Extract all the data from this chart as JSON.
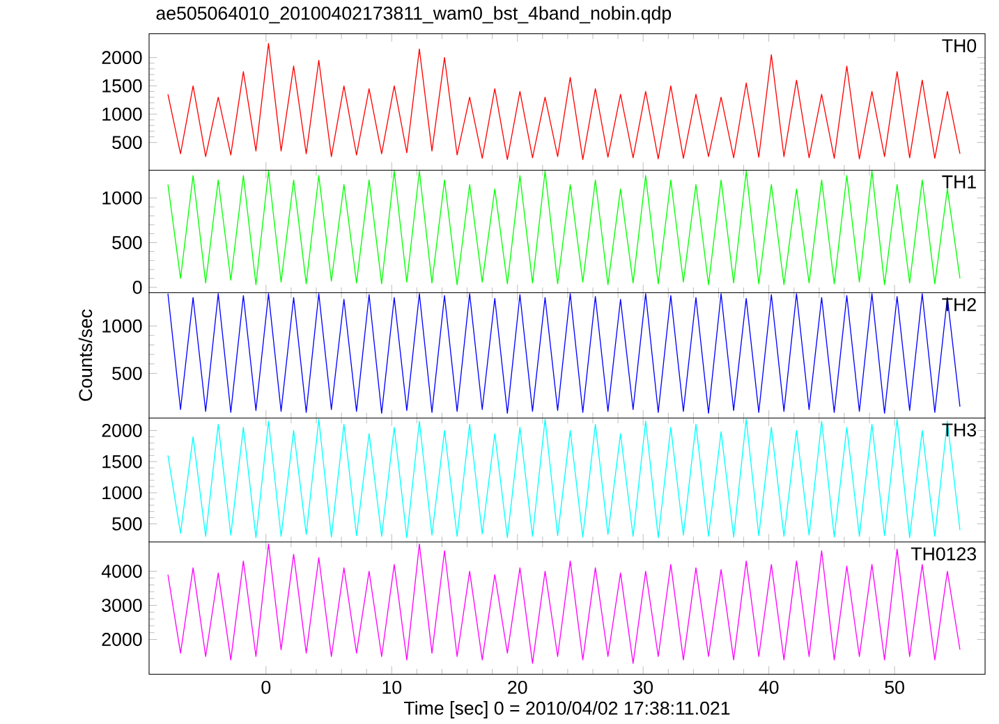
{
  "chart_data": [
    {
      "type": "line",
      "title": "ae505064010_20100402173811_wam0_bst_4band_nobin.qdp",
      "x": [
        -7.8,
        -6.8,
        -5.8,
        -4.8,
        -3.8,
        -2.8,
        -1.8,
        -0.8,
        0.2,
        1.2,
        2.2,
        3.2,
        4.2,
        5.2,
        6.2,
        7.2,
        8.2,
        9.2,
        10.2,
        11.2,
        12.2,
        13.2,
        14.2,
        15.2,
        16.2,
        17.2,
        18.2,
        19.2,
        20.2,
        21.2,
        22.2,
        23.2,
        24.2,
        25.2,
        26.2,
        27.2,
        28.2,
        29.2,
        30.2,
        31.2,
        32.2,
        33.2,
        34.2,
        35.2,
        36.2,
        37.2,
        38.2,
        39.2,
        40.2,
        41.2,
        42.2,
        43.2,
        44.2,
        45.2,
        46.2,
        47.2,
        48.2,
        49.2,
        50.2,
        51.2,
        52.2,
        53.2,
        54.2,
        55.2
      ],
      "series": [
        {
          "name": "TH0",
          "color": "#ff0000",
          "values": [
            1350,
            300,
            1500,
            250,
            1300,
            280,
            1750,
            350,
            2250,
            350,
            1850,
            300,
            1950,
            250,
            1500,
            280,
            1450,
            300,
            1500,
            320,
            2150,
            350,
            2000,
            280,
            1300,
            220,
            1450,
            200,
            1400,
            230,
            1300,
            250,
            1650,
            200,
            1450,
            240,
            1350,
            230,
            1400,
            210,
            1500,
            220,
            1350,
            250,
            1300,
            230,
            1550,
            240,
            2050,
            250,
            1600,
            230,
            1350,
            220,
            1850,
            210,
            1400,
            250,
            1750,
            230,
            1600,
            220,
            1400,
            300
          ]
        }
      ],
      "xlim": [
        -9.3,
        57.2
      ],
      "xticks": [
        0,
        10,
        20,
        30,
        40,
        50
      ],
      "ylim": [
        10,
        2420
      ],
      "yticks": [
        500,
        1000,
        1500,
        2000
      ],
      "tick_labels": "y"
    },
    {
      "type": "line",
      "x": [
        -7.8,
        -6.8,
        -5.8,
        -4.8,
        -3.8,
        -2.8,
        -1.8,
        -0.8,
        0.2,
        1.2,
        2.2,
        3.2,
        4.2,
        5.2,
        6.2,
        7.2,
        8.2,
        9.2,
        10.2,
        11.2,
        12.2,
        13.2,
        14.2,
        15.2,
        16.2,
        17.2,
        18.2,
        19.2,
        20.2,
        21.2,
        22.2,
        23.2,
        24.2,
        25.2,
        26.2,
        27.2,
        28.2,
        29.2,
        30.2,
        31.2,
        32.2,
        33.2,
        34.2,
        35.2,
        36.2,
        37.2,
        38.2,
        39.2,
        40.2,
        41.2,
        42.2,
        43.2,
        44.2,
        45.2,
        46.2,
        47.2,
        48.2,
        49.2,
        50.2,
        51.2,
        52.2,
        53.2,
        54.2,
        55.2
      ],
      "series": [
        {
          "name": "TH1",
          "color": "#00ff00",
          "values": [
            1150,
            100,
            1250,
            50,
            1200,
            80,
            1250,
            30,
            1300,
            60,
            1200,
            40,
            1250,
            70,
            1150,
            50,
            1200,
            40,
            1300,
            60,
            1300,
            50,
            1200,
            30,
            1150,
            60,
            1100,
            40,
            1250,
            50,
            1300,
            40,
            1150,
            60,
            1200,
            30,
            1100,
            50,
            1250,
            40,
            1200,
            60,
            1150,
            30,
            1200,
            50,
            1300,
            40,
            1150,
            30,
            1100,
            50,
            1200,
            40,
            1250,
            60,
            1300,
            30,
            1150,
            50,
            1200,
            40,
            1100,
            100
          ]
        }
      ],
      "xlim": [
        -9.3,
        57.2
      ],
      "xticks": [
        0,
        10,
        20,
        30,
        40,
        50
      ],
      "ylim": [
        -60,
        1310
      ],
      "yticks": [
        0,
        500,
        1000
      ],
      "tick_labels": "y"
    },
    {
      "type": "line",
      "ylabel": "Counts/sec",
      "x": [
        -7.8,
        -6.8,
        -5.8,
        -4.8,
        -3.8,
        -2.8,
        -1.8,
        -0.8,
        0.2,
        1.2,
        2.2,
        3.2,
        4.2,
        5.2,
        6.2,
        7.2,
        8.2,
        9.2,
        10.2,
        11.2,
        12.2,
        13.2,
        14.2,
        15.2,
        16.2,
        17.2,
        18.2,
        19.2,
        20.2,
        21.2,
        22.2,
        23.2,
        24.2,
        25.2,
        26.2,
        27.2,
        28.2,
        29.2,
        30.2,
        31.2,
        32.2,
        33.2,
        34.2,
        35.2,
        36.2,
        37.2,
        38.2,
        39.2,
        40.2,
        41.2,
        42.2,
        43.2,
        44.2,
        45.2,
        46.2,
        47.2,
        48.2,
        49.2,
        50.2,
        51.2,
        52.2,
        53.2,
        54.2,
        55.2
      ],
      "series": [
        {
          "name": "TH2",
          "color": "#0000ff",
          "values": [
            1340,
            120,
            1300,
            100,
            1340,
            90,
            1320,
            110,
            1340,
            100,
            1300,
            90,
            1340,
            120,
            1280,
            100,
            1330,
            80,
            1300,
            110,
            1340,
            90,
            1320,
            100,
            1340,
            120,
            1290,
            80,
            1330,
            100,
            1300,
            110,
            1340,
            90,
            1310,
            100,
            1280,
            120,
            1340,
            90,
            1320,
            100,
            1300,
            80,
            1340,
            110,
            1290,
            90,
            1330,
            100,
            1340,
            120,
            1300,
            90,
            1320,
            100,
            1340,
            80,
            1310,
            110,
            1340,
            90,
            1300,
            150
          ]
        }
      ],
      "xlim": [
        -9.3,
        57.2
      ],
      "xticks": [
        0,
        10,
        20,
        30,
        40,
        50
      ],
      "ylim": [
        30,
        1350
      ],
      "yticks": [
        500,
        1000
      ],
      "tick_labels": "y"
    },
    {
      "type": "line",
      "x": [
        -7.8,
        -6.8,
        -5.8,
        -4.8,
        -3.8,
        -2.8,
        -1.8,
        -0.8,
        0.2,
        1.2,
        2.2,
        3.2,
        4.2,
        5.2,
        6.2,
        7.2,
        8.2,
        9.2,
        10.2,
        11.2,
        12.2,
        13.2,
        14.2,
        15.2,
        16.2,
        17.2,
        18.2,
        19.2,
        20.2,
        21.2,
        22.2,
        23.2,
        24.2,
        25.2,
        26.2,
        27.2,
        28.2,
        29.2,
        30.2,
        31.2,
        32.2,
        33.2,
        34.2,
        35.2,
        36.2,
        37.2,
        38.2,
        39.2,
        40.2,
        41.2,
        42.2,
        43.2,
        44.2,
        45.2,
        46.2,
        47.2,
        48.2,
        49.2,
        50.2,
        51.2,
        52.2,
        53.2,
        54.2,
        55.2
      ],
      "series": [
        {
          "name": "TH3",
          "color": "#00ffff",
          "values": [
            1600,
            350,
            1900,
            300,
            2100,
            320,
            2050,
            280,
            2150,
            300,
            2000,
            330,
            2180,
            290,
            2100,
            310,
            1950,
            300,
            2050,
            280,
            2150,
            320,
            2000,
            300,
            2100,
            340,
            1950,
            280,
            2050,
            300,
            2180,
            310,
            2000,
            290,
            2100,
            330,
            1950,
            300,
            2150,
            280,
            2050,
            320,
            2100,
            300,
            1980,
            290,
            2180,
            310,
            2050,
            300,
            2000,
            320,
            2150,
            290,
            2050,
            300,
            2100,
            310,
            2180,
            280,
            2000,
            300,
            2150,
            400
          ]
        }
      ],
      "xlim": [
        -9.3,
        57.2
      ],
      "xticks": [
        0,
        10,
        20,
        30,
        40,
        50
      ],
      "ylim": [
        210,
        2200
      ],
      "yticks": [
        500,
        1000,
        1500,
        2000
      ],
      "tick_labels": "y"
    },
    {
      "type": "line",
      "xlabel": "Time [sec] 0 = 2010/04/02 17:38:11.021",
      "x": [
        -7.8,
        -6.8,
        -5.8,
        -4.8,
        -3.8,
        -2.8,
        -1.8,
        -0.8,
        0.2,
        1.2,
        2.2,
        3.2,
        4.2,
        5.2,
        6.2,
        7.2,
        8.2,
        9.2,
        10.2,
        11.2,
        12.2,
        13.2,
        14.2,
        15.2,
        16.2,
        17.2,
        18.2,
        19.2,
        20.2,
        21.2,
        22.2,
        23.2,
        24.2,
        25.2,
        26.2,
        27.2,
        28.2,
        29.2,
        30.2,
        31.2,
        32.2,
        33.2,
        34.2,
        35.2,
        36.2,
        37.2,
        38.2,
        39.2,
        40.2,
        41.2,
        42.2,
        43.2,
        44.2,
        45.2,
        46.2,
        47.2,
        48.2,
        49.2,
        50.2,
        51.2,
        52.2,
        53.2,
        54.2,
        55.2
      ],
      "series": [
        {
          "name": "TH0123",
          "color": "#ff00ff",
          "values": [
            3900,
            1600,
            4100,
            1500,
            3950,
            1400,
            4300,
            1500,
            4800,
            1700,
            4500,
            1600,
            4400,
            1500,
            4100,
            1600,
            4000,
            1500,
            4200,
            1400,
            4800,
            1600,
            4600,
            1500,
            4000,
            1400,
            3900,
            1600,
            4100,
            1300,
            4000,
            1500,
            4300,
            1400,
            4100,
            1500,
            3950,
            1300,
            4000,
            1500,
            4200,
            1400,
            4100,
            1500,
            4050,
            1400,
            4300,
            1500,
            4200,
            1400,
            4300,
            1500,
            4600,
            1400,
            4150,
            1500,
            4200,
            1400,
            4650,
            1500,
            4200,
            1400,
            4000,
            1700
          ]
        }
      ],
      "xlim": [
        -9.3,
        57.2
      ],
      "xticks": [
        0,
        10,
        20,
        30,
        40,
        50
      ],
      "ylim": [
        980,
        4860
      ],
      "yticks": [
        2000,
        3000,
        4000
      ]
    }
  ]
}
